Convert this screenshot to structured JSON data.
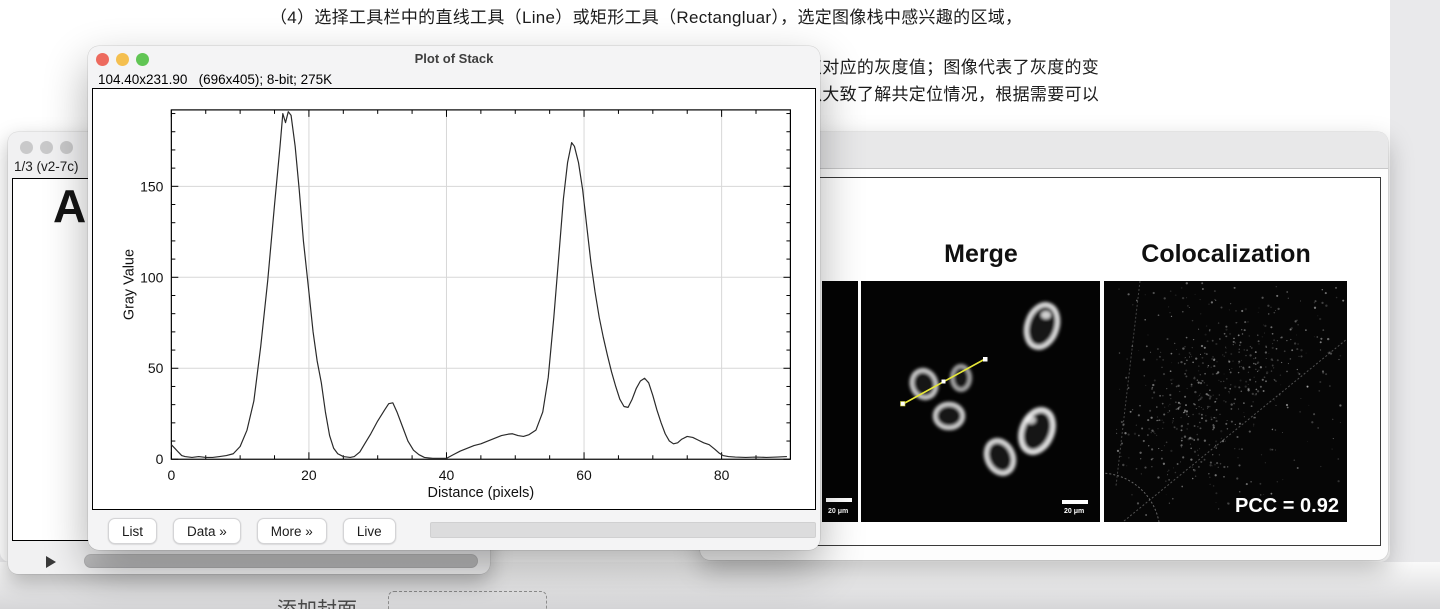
{
  "document": {
    "line1": "（4）选择工具栏中的直线工具（Line）或矩形工具（Rectangluar），选定图像栈中感兴趣的区域，",
    "fragment_line1": "点对应的灰度值；图像代表了灰度的变",
    "fragment_line2": "以大致了解共定位情况，根据需要可以",
    "add_cover_label": "添加封面"
  },
  "left_window": {
    "title": "1/3 (v2-7c)",
    "image_label": "A"
  },
  "plot_window": {
    "title": "Plot of Stack",
    "info": "104.40x231.90   (696x405); 8-bit; 275K",
    "buttons": [
      "List",
      "Data »",
      "More »",
      "Live"
    ]
  },
  "image_window": {
    "panel_titles": [
      "Merge",
      "Colocalization"
    ],
    "pcc_label": "PCC = 0.92",
    "scale_bar_label": "20 μm"
  },
  "colors": {
    "roi_line": "#e8e838",
    "traffic_red": "#ed6a5e",
    "traffic_yellow": "#f4bf4f",
    "traffic_green": "#61c554",
    "gridline": "#d7d7d7",
    "curve": "#2a2a2a"
  },
  "chart_data": {
    "type": "line",
    "title": "",
    "xlabel": "Distance (pixels)",
    "ylabel": "Gray Value",
    "xlim": [
      0,
      90
    ],
    "ylim": [
      0,
      192
    ],
    "x_major_ticks": [
      0,
      20,
      40,
      60,
      80
    ],
    "y_major_ticks": [
      0,
      50,
      100,
      150
    ],
    "x_minor_step": 5,
    "y_minor_step": 10,
    "grid": true,
    "legend": "none",
    "points": [
      [
        0,
        8
      ],
      [
        0.5,
        6
      ],
      [
        1,
        4
      ],
      [
        1.5,
        2
      ],
      [
        2,
        1.5
      ],
      [
        3,
        1
      ],
      [
        4,
        1.5
      ],
      [
        5,
        1
      ],
      [
        6,
        1
      ],
      [
        7,
        1.5
      ],
      [
        8,
        2
      ],
      [
        9,
        3
      ],
      [
        10,
        7
      ],
      [
        11,
        16
      ],
      [
        12,
        32
      ],
      [
        13,
        62
      ],
      [
        14,
        98
      ],
      [
        15,
        140
      ],
      [
        15.8,
        172
      ],
      [
        16.2,
        190
      ],
      [
        16.6,
        185
      ],
      [
        17,
        191
      ],
      [
        17.4,
        189
      ],
      [
        18,
        172
      ],
      [
        18.6,
        148
      ],
      [
        19.2,
        120
      ],
      [
        20,
        92
      ],
      [
        20.6,
        70
      ],
      [
        21.2,
        54
      ],
      [
        21.8,
        42
      ],
      [
        22.4,
        26
      ],
      [
        23,
        13
      ],
      [
        23.6,
        6
      ],
      [
        24.2,
        3
      ],
      [
        25,
        1.5
      ],
      [
        26,
        1
      ],
      [
        26.6,
        1.5
      ],
      [
        27.4,
        4
      ],
      [
        28.2,
        9
      ],
      [
        29,
        14
      ],
      [
        30,
        21
      ],
      [
        31,
        27
      ],
      [
        31.6,
        30.5
      ],
      [
        32.2,
        31
      ],
      [
        32.8,
        26
      ],
      [
        33.6,
        18
      ],
      [
        34.4,
        10
      ],
      [
        35.2,
        5
      ],
      [
        36,
        2.5
      ],
      [
        36.8,
        1
      ],
      [
        38,
        0.5
      ],
      [
        39,
        0.5
      ],
      [
        40,
        0.5
      ],
      [
        41,
        2.5
      ],
      [
        42,
        4.5
      ],
      [
        43,
        6
      ],
      [
        44,
        7.5
      ],
      [
        45,
        8.5
      ],
      [
        46,
        10
      ],
      [
        47,
        11.5
      ],
      [
        48,
        13
      ],
      [
        49,
        13.8
      ],
      [
        49.6,
        14
      ],
      [
        50.4,
        13
      ],
      [
        51.2,
        12.5
      ],
      [
        52,
        13.5
      ],
      [
        53,
        16
      ],
      [
        54,
        26
      ],
      [
        54.8,
        45
      ],
      [
        55.6,
        78
      ],
      [
        56.4,
        115
      ],
      [
        57,
        143
      ],
      [
        57.6,
        163
      ],
      [
        58.2,
        174
      ],
      [
        58.6,
        172
      ],
      [
        59.2,
        163
      ],
      [
        59.8,
        148
      ],
      [
        60.4,
        128
      ],
      [
        61,
        108
      ],
      [
        61.6,
        92
      ],
      [
        62.2,
        78
      ],
      [
        62.8,
        67
      ],
      [
        63.4,
        57
      ],
      [
        64,
        48
      ],
      [
        64.6,
        40
      ],
      [
        65.2,
        33
      ],
      [
        65.8,
        29
      ],
      [
        66.4,
        28.5
      ],
      [
        67,
        33
      ],
      [
        67.6,
        39
      ],
      [
        68.2,
        43
      ],
      [
        68.8,
        44.5
      ],
      [
        69.4,
        42
      ],
      [
        70,
        35
      ],
      [
        70.6,
        27
      ],
      [
        71.2,
        20
      ],
      [
        71.8,
        14
      ],
      [
        72.4,
        10
      ],
      [
        73,
        8.5
      ],
      [
        73.6,
        9
      ],
      [
        74.2,
        11
      ],
      [
        75,
        12.5
      ],
      [
        75.8,
        12
      ],
      [
        76.6,
        10.5
      ],
      [
        77.4,
        9
      ],
      [
        78.2,
        8
      ],
      [
        79,
        5.5
      ],
      [
        79.6,
        3.5
      ],
      [
        80.2,
        2
      ],
      [
        81,
        1.5
      ],
      [
        82,
        1.2
      ],
      [
        83.5,
        1
      ],
      [
        85,
        1.2
      ],
      [
        86.5,
        1
      ],
      [
        88,
        1.2
      ],
      [
        89.5,
        1.5
      ]
    ]
  }
}
